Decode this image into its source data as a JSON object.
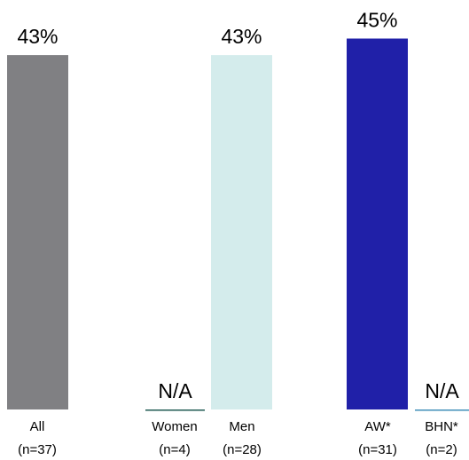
{
  "chart_data": {
    "type": "bar",
    "title": "",
    "xlabel": "",
    "ylabel": "",
    "ylim": [
      0,
      50
    ],
    "unit": "%",
    "grid": false,
    "legend": "none",
    "bars": [
      {
        "label": "All",
        "n": "(n=37)",
        "value": 43,
        "display": "43%",
        "color": "#808083"
      },
      {
        "label": "Women",
        "n": "(n=4)",
        "value": null,
        "display": "N/A",
        "color": "#1f5a52"
      },
      {
        "label": "Men",
        "n": "(n=28)",
        "value": 43,
        "display": "43%",
        "color": "#d4ecec"
      },
      {
        "label": "AW*",
        "n": "(n=31)",
        "value": 45,
        "display": "45%",
        "color": "#2020a8"
      },
      {
        "label": "BHN*",
        "n": "(n=2)",
        "value": null,
        "display": "N/A",
        "color": "#3f8fb8"
      }
    ]
  }
}
